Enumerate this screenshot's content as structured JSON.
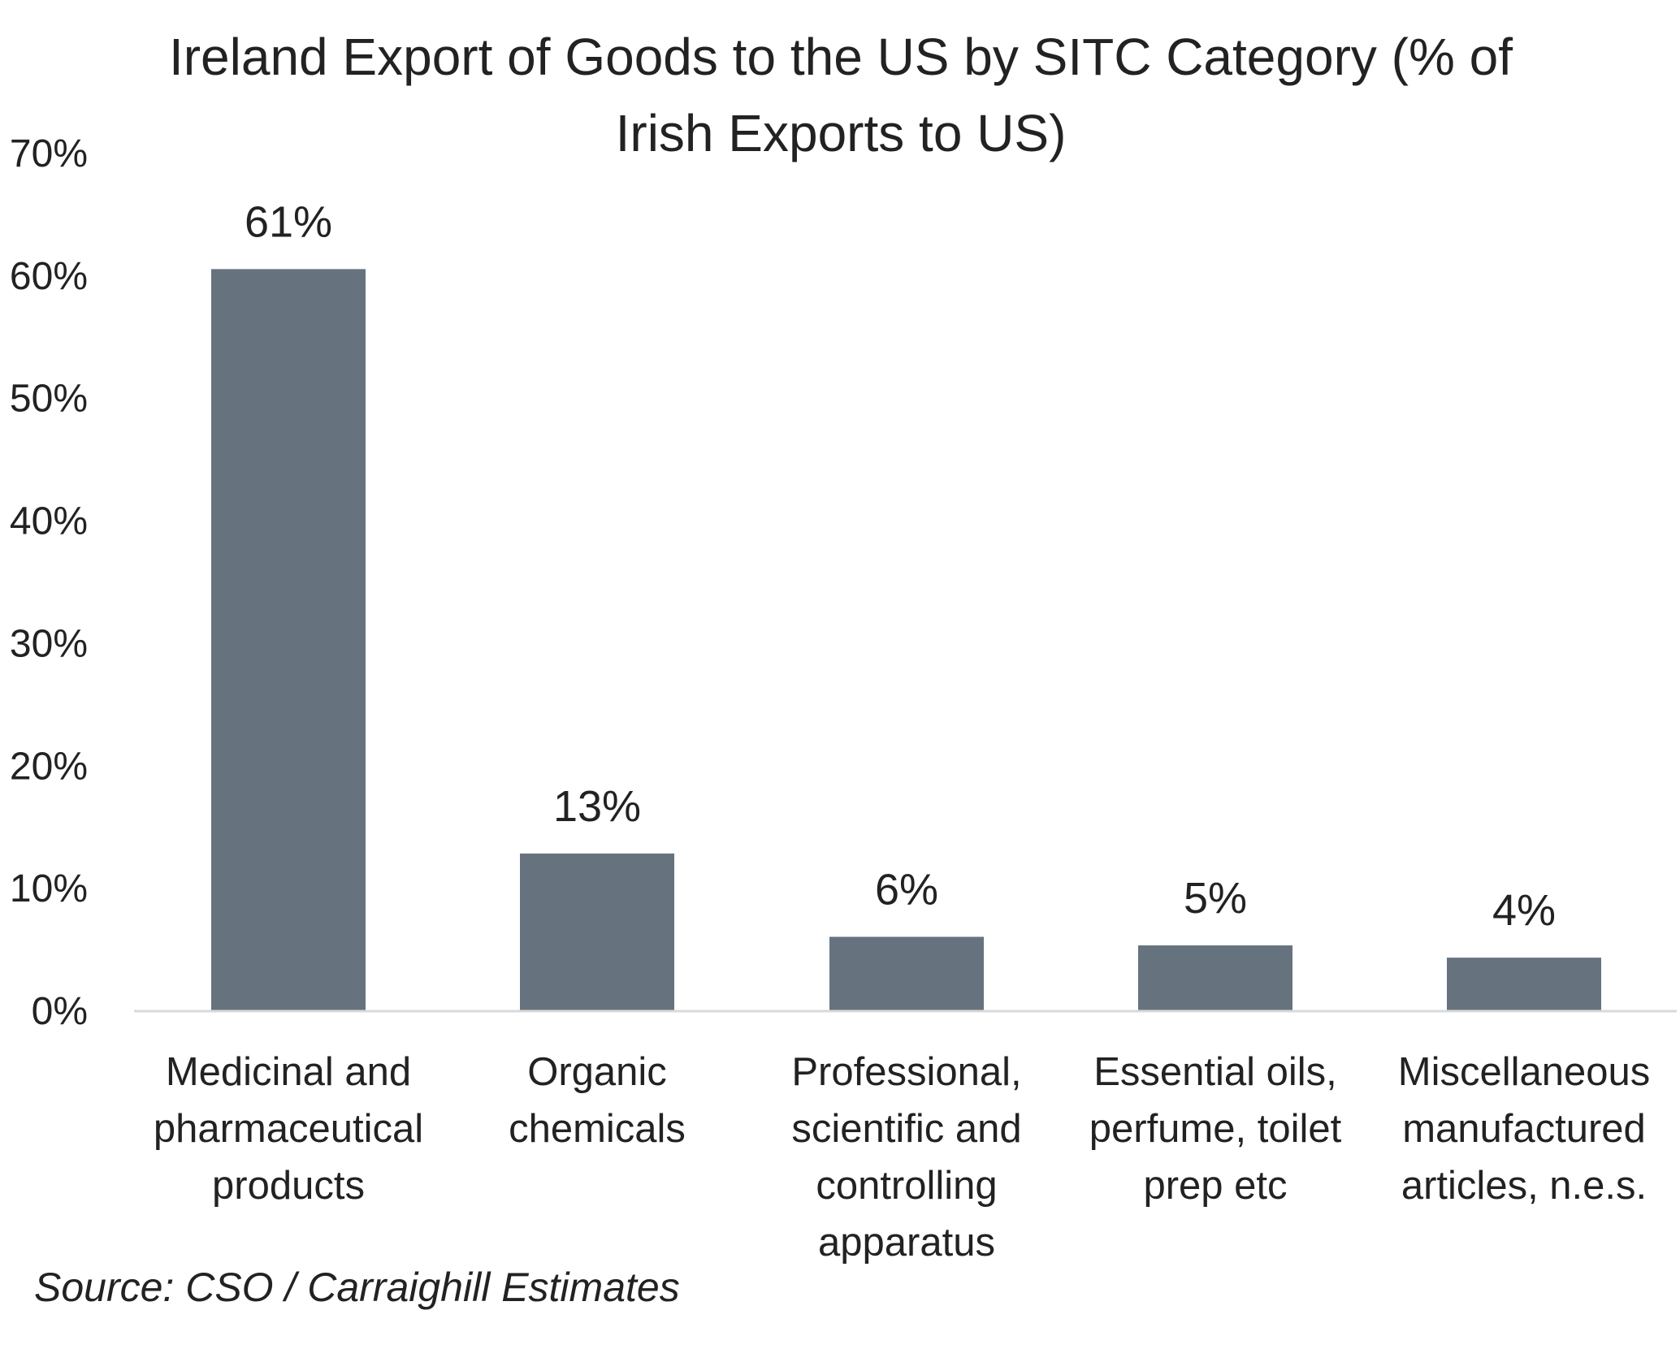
{
  "chart_data": {
    "type": "bar",
    "title_lines": [
      "Ireland Export of Goods to the US by SITC Category (% of",
      "Irish Exports to US)"
    ],
    "categories": [
      [
        "Medicinal and",
        "pharmaceutical",
        "products"
      ],
      [
        "Organic",
        "chemicals"
      ],
      [
        "Professional,",
        "scientific and",
        "controlling",
        "apparatus"
      ],
      [
        "Essential oils,",
        "perfume, toilet",
        "prep etc"
      ],
      [
        "Miscellaneous",
        "manufactured",
        "articles, n.e.s."
      ]
    ],
    "values": [
      60.5,
      12.8,
      6.0,
      5.3,
      4.3
    ],
    "data_labels": [
      "61%",
      "13%",
      "6%",
      "5%",
      "4%"
    ],
    "ylim": [
      0,
      70
    ],
    "yticks": [
      0,
      10,
      20,
      30,
      40,
      50,
      60,
      70
    ],
    "ytick_labels": [
      "0%",
      "10%",
      "20%",
      "30%",
      "40%",
      "50%",
      "60%",
      "70%"
    ],
    "bar_color": "#66737f",
    "axis_color": "#d9d9d9",
    "grid": false,
    "legend": "none"
  },
  "source": "Source: CSO / Carraighill Estimates"
}
